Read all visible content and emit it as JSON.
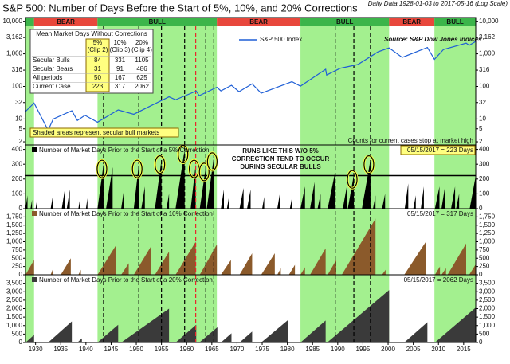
{
  "chart_data": [
    {
      "type": "line",
      "title": "S&P 500: Number of Days Before the Start of 5%, 10%, and 20% Corrections",
      "subtitle": "Daily Data 1928-01-03 to 2017-05-16 (Log Scale)",
      "xlim": [
        1928,
        2017.4
      ],
      "xticks": [
        1930,
        1935,
        1940,
        1945,
        1950,
        1955,
        1960,
        1965,
        1970,
        1975,
        1980,
        1985,
        1990,
        1995,
        2000,
        2005,
        2010,
        2015
      ],
      "log_scale": true,
      "ylim": [
        1.6,
        13000
      ],
      "yticks": [
        2,
        5,
        10,
        32,
        100,
        316,
        {
          "value": 1000,
          "label": "1,000"
        },
        {
          "value": 3162,
          "label": "3,162"
        },
        {
          "value": 10000,
          "label": "10,000"
        }
      ],
      "regime_colors": {
        "bull_header": "#3cb54a",
        "bear_header": "#e8473c",
        "bull_shade": "#a3f08f"
      },
      "regimes": [
        {
          "start": 1928,
          "end": 1929.7,
          "kind": "bull",
          "label": null
        },
        {
          "start": 1929.7,
          "end": 1942.3,
          "kind": "bear",
          "label": "BEAR"
        },
        {
          "start": 1942.3,
          "end": 1966,
          "kind": "bull",
          "label": "BULL"
        },
        {
          "start": 1966,
          "end": 1982.6,
          "kind": "bear",
          "label": "BEAR"
        },
        {
          "start": 1982.6,
          "end": 2000.2,
          "kind": "bull",
          "label": "BULL"
        },
        {
          "start": 2000.2,
          "end": 2009.2,
          "kind": "bear",
          "label": "BEAR"
        },
        {
          "start": 2009.2,
          "end": 2017.4,
          "kind": "bull",
          "label": "BULL"
        }
      ],
      "markers": [
        {
          "x": 1943.5,
          "color": "#000000",
          "circled": true
        },
        {
          "x": 1950.5,
          "color": "#000000",
          "circled": true
        },
        {
          "x": 1955,
          "color": "#000000",
          "circled": true
        },
        {
          "x": 1959.6,
          "color": "#000000",
          "circled": true
        },
        {
          "x": 1961.8,
          "color": "#e8262a",
          "circled": true
        },
        {
          "x": 1963.8,
          "color": "#000000",
          "circled": true
        },
        {
          "x": 1965.4,
          "color": "#000000",
          "circled": true
        },
        {
          "x": 1989.5,
          "color": "#000000",
          "circled": false
        },
        {
          "x": 1993.2,
          "color": "#000000",
          "circled": true
        },
        {
          "x": 1996.5,
          "color": "#000000",
          "circled": true
        }
      ],
      "series": [
        {
          "name": "S&P 500 Index",
          "color": "#1f5fd6",
          "x": [
            1928,
            1929.7,
            1932.5,
            1933.5,
            1937.2,
            1938.3,
            1939.8,
            1942.3,
            1946.4,
            1949.5,
            1953,
            1956.5,
            1957.8,
            1961.9,
            1962.5,
            1966,
            1966.8,
            1968.9,
            1970.4,
            1973,
            1974.8,
            1980.9,
            1982.6,
            1987.6,
            1987.8,
            1990.5,
            1994,
            1998,
            2000.2,
            2002.8,
            2007.8,
            2009.2,
            2011,
            2015.5,
            2016.1,
            2017.4
          ],
          "values": [
            17,
            31,
            4.5,
            10,
            18,
            9,
            13,
            8,
            19,
            14,
            26,
            48,
            39,
            72,
            52,
            94,
            73,
            108,
            69,
            120,
            62,
            140,
            102,
            335,
            224,
            360,
            470,
            1150,
            1520,
            776,
            1565,
            676,
            1360,
            2130,
            1829,
            2400
          ]
        }
      ],
      "source": "Source: S&P Dow Jones Indices",
      "note": "Shaded areas represent secular bull markets",
      "counts_note": "Counts for current cases stop at market high",
      "inset_table": {
        "title": "Mean Market Days Without Corrections",
        "columns": [
          [
            "5%",
            "(Clip 2)"
          ],
          [
            "10%",
            "(Clip 3)"
          ],
          [
            "20%",
            "(Clip 4)"
          ]
        ],
        "rows": [
          [
            "Secular Bulls",
            84,
            331,
            1105
          ],
          [
            "Secular Bears",
            31,
            91,
            486
          ],
          [
            "All periods",
            50,
            167,
            625
          ],
          [
            "Current Case",
            223,
            317,
            2062
          ]
        ]
      }
    },
    {
      "type": "spike",
      "title": "Number of Market Days Prior to the Start of a 5% Correction",
      "value_label": "05/15/2017 = 223 Days",
      "value_label_highlight": true,
      "threshold": 223,
      "annotation_lines": [
        "RUNS LIKE THIS W/O 5%",
        "CORRECTION TEND TO OCCUR",
        "DURING SECULAR BULLS"
      ],
      "ylim": [
        0,
        430
      ],
      "yticks": [
        0,
        100,
        200,
        300,
        400
      ],
      "series": [
        {
          "color": "#000000",
          "x": [
            1928,
            1928.4,
            1929,
            1929.3,
            1930,
            1930.3,
            1933,
            1933.4,
            1935.2,
            1935.9,
            1936.2,
            1936.8,
            1938.5,
            1938.8,
            1940,
            1940.3,
            1942.3,
            1943.5,
            1944,
            1945.3,
            1947,
            1947.6,
            1949.5,
            1950.5,
            1951,
            1951.7,
            1953.7,
            1955,
            1956,
            1956.5,
            1957.8,
            1959.6,
            1960.8,
            1961.8,
            1962.6,
            1963.8,
            1964,
            1965.4,
            1966.8,
            1967.4,
            1968,
            1968.5,
            1970.5,
            1971.3,
            1972,
            1972.7,
            1975,
            1975.4,
            1978,
            1978.5,
            1980.5,
            1981,
            1982.6,
            1983.5,
            1984.5,
            1985.4,
            1986,
            1986.6,
            1988,
            1989.5,
            1991,
            1991.8,
            1992,
            1993.2,
            1994.8,
            1996.5,
            1997,
            1997.5,
            1998.8,
            1999.4,
            2003.3,
            2004,
            2005,
            2005.5,
            2006.5,
            2007.1,
            2009.3,
            2010.2,
            2010.6,
            2011.3,
            2012.5,
            2013.3,
            2013.5,
            2014.1,
            2016.2,
            2017.4
          ],
          "values": [
            0,
            90,
            0,
            60,
            0,
            60,
            0,
            80,
            0,
            150,
            0,
            130,
            0,
            60,
            0,
            70,
            0,
            300,
            0,
            280,
            0,
            140,
            0,
            300,
            0,
            150,
            0,
            330,
            0,
            100,
            0,
            400,
            0,
            300,
            0,
            280,
            0,
            350,
            0,
            130,
            0,
            100,
            0,
            140,
            0,
            130,
            0,
            80,
            0,
            100,
            0,
            90,
            0,
            150,
            0,
            180,
            0,
            100,
            0,
            250,
            0,
            150,
            0,
            230,
            0,
            330,
            0,
            90,
            0,
            100,
            0,
            170,
            0,
            90,
            0,
            150,
            0,
            150,
            0,
            150,
            0,
            150,
            0,
            100,
            0,
            223
          ]
        }
      ]
    },
    {
      "type": "spike",
      "title": "Number of Market Days Prior to the Start of a 10% Correction",
      "value_label": "05/15/2017 = 317 Days",
      "value_label_highlight": false,
      "ylim": [
        0,
        2000
      ],
      "yticks": [
        0,
        250,
        500,
        750,
        {
          "value": 1000,
          "label": "1,000"
        },
        {
          "value": 1250,
          "label": "1,250"
        },
        {
          "value": 1500,
          "label": "1,500"
        },
        {
          "value": 1750,
          "label": "1,750"
        }
      ],
      "series": [
        {
          "color": "#8b5a2b",
          "x": [
            1928,
            1929.7,
            1933,
            1933.5,
            1935,
            1937,
            1938.5,
            1939,
            1942.3,
            1946,
            1947,
            1948.5,
            1949.5,
            1953,
            1953.7,
            1956.5,
            1957.8,
            1961.8,
            1962.6,
            1966,
            1966.8,
            1968.8,
            1970.5,
            1973,
            1974.8,
            1977.5,
            1978,
            1978.7,
            1980.3,
            1981.5,
            1982.6,
            1983.5,
            1984.5,
            1987.6,
            1988,
            1989.7,
            1990.8,
            1997.5,
            1998.8,
            1999.5,
            2003.2,
            2007.5,
            2009.3,
            2010.3,
            2010.6,
            2011.5,
            2011.8,
            2015.5,
            2016.1,
            2017.4
          ],
          "values": [
            0,
            450,
            0,
            200,
            0,
            500,
            0,
            150,
            0,
            900,
            0,
            350,
            0,
            880,
            0,
            700,
            0,
            1000,
            0,
            920,
            0,
            450,
            0,
            650,
            0,
            650,
            0,
            200,
            0,
            300,
            0,
            230,
            0,
            800,
            0,
            450,
            0,
            1700,
            0,
            150,
            0,
            1000,
            0,
            250,
            0,
            200,
            0,
            950,
            0,
            317
          ]
        }
      ]
    },
    {
      "type": "spike",
      "title": "Number of Market Days Prior to the Start of a 20% Correction",
      "value_label": "05/15/2017 = 2062 Days",
      "value_label_highlight": false,
      "ylim": [
        0,
        4000
      ],
      "yticks": [
        0,
        500,
        {
          "value": 1000,
          "label": "1,000"
        },
        {
          "value": 1500,
          "label": "1,500"
        },
        {
          "value": 2000,
          "label": "2,000"
        },
        {
          "value": 2500,
          "label": "2,500"
        },
        {
          "value": 3000,
          "label": "3,000"
        },
        {
          "value": 3500,
          "label": "3,500"
        }
      ],
      "series": [
        {
          "color": "#3a3a3a",
          "x": [
            1928,
            1929.7,
            1932.5,
            1937.2,
            1938.3,
            1939.2,
            1942.3,
            1946.4,
            1947,
            1956.5,
            1957.8,
            1961.9,
            1962.5,
            1966.1,
            1966.8,
            1968.9,
            1970.5,
            1973,
            1974.8,
            1980.2,
            1982.6,
            1987.6,
            1987.9,
            2000.2,
            2003.2,
            2007.8,
            2009.3,
            2017.4
          ],
          "values": [
            0,
            450,
            0,
            1250,
            0,
            250,
            0,
            1050,
            0,
            2000,
            0,
            1050,
            0,
            900,
            0,
            550,
            0,
            650,
            0,
            1350,
            0,
            1300,
            0,
            3100,
            0,
            1200,
            0,
            2062
          ]
        }
      ]
    }
  ]
}
